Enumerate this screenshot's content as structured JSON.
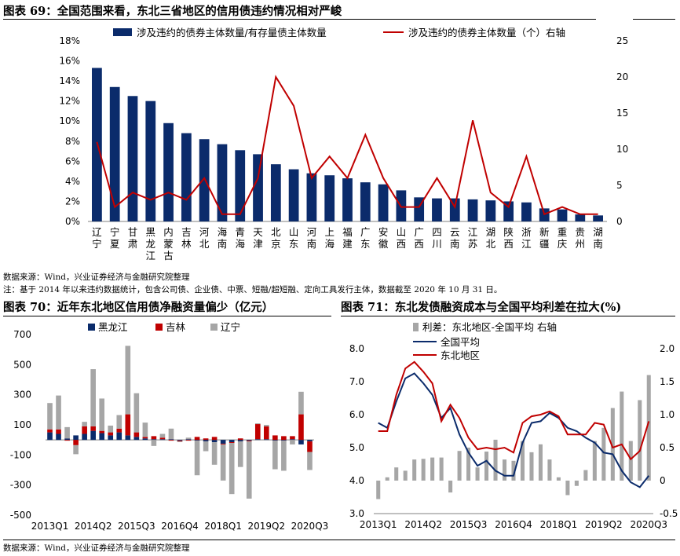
{
  "colors": {
    "navy": "#0B2B6B",
    "red": "#C00000",
    "gray": "#A6A6A6",
    "axis": "#808080"
  },
  "fig69": {
    "title": "图表 69：全国范围来看，东北三省地区的信用债违约情况相对严峻",
    "legend": {
      "bar": "涉及违约的债券主体数量/有存量债主体数量",
      "line": "涉及违约的债券主体数量（个）右轴"
    },
    "source": "数据来源：Wind，兴业证券经济与金融研究院整理",
    "note": "注：基于 2014 年以来违约数据统计，包含公司债、企业债、中票、短融/超短融、定向工具发行主体，数据截至 2020 年 10 月 31 日。"
  },
  "fig70": {
    "title": "图表 70：近年东北地区信用债净融资量偏少（亿元）",
    "legend": [
      "黑龙江",
      "吉林",
      "辽宁"
    ]
  },
  "fig71": {
    "title": "图表 71：东北发债融资成本与全国平均利差在拉大(%)",
    "legend": {
      "bar": "利差：东北地区-全国平均 右轴",
      "national": "全国平均",
      "northeast": "东北地区"
    }
  },
  "footer": {
    "source": "数据来源：Wind，兴业证券经济与金融研究院整理"
  },
  "chart_data": [
    {
      "id": "fig69",
      "type": "bar",
      "categories": [
        "辽宁",
        "宁夏",
        "甘肃",
        "黑龙江",
        "内蒙古",
        "吉林",
        "河北",
        "海南",
        "青海",
        "天津",
        "北京",
        "山东",
        "河南",
        "上海",
        "福建",
        "广东",
        "安徽",
        "山西",
        "广西",
        "四川",
        "云南",
        "江苏",
        "湖北",
        "陕西",
        "浙江",
        "新疆",
        "重庆",
        "贵州",
        "湖南"
      ],
      "ylim": [
        0,
        18
      ],
      "y2lim": [
        0,
        25
      ],
      "y_ticks": [
        "0%",
        "2%",
        "4%",
        "6%",
        "8%",
        "10%",
        "12%",
        "14%",
        "16%",
        "18%"
      ],
      "y2_ticks": [
        "0",
        "5",
        "10",
        "15",
        "20",
        "25"
      ],
      "series": [
        {
          "name": "涉及违约的债券主体数量/有存量债主体数量",
          "axis": "left",
          "kind": "bar",
          "values": [
            15.3,
            13.4,
            12.5,
            12.0,
            9.8,
            8.8,
            8.2,
            7.7,
            7.1,
            6.7,
            5.7,
            5.2,
            4.8,
            4.6,
            4.3,
            3.9,
            3.7,
            3.1,
            2.4,
            2.3,
            2.3,
            2.2,
            2.1,
            2.0,
            1.9,
            1.3,
            1.2,
            0.7,
            0.6
          ]
        },
        {
          "name": "涉及违约的债券主体数量（个）右轴",
          "axis": "right",
          "kind": "line",
          "values": [
            11,
            2,
            4,
            3,
            4,
            3,
            6,
            1,
            1,
            6,
            20,
            16,
            6,
            9,
            6,
            12,
            6,
            2,
            2,
            6,
            2,
            14,
            4,
            2,
            9,
            1,
            2,
            1,
            1
          ]
        }
      ]
    },
    {
      "id": "fig70",
      "type": "bar",
      "stacked": true,
      "x_tick_labels": [
        "2013Q1",
        "2014Q2",
        "2015Q3",
        "2016Q4",
        "2018Q1",
        "2019Q2",
        "2020Q3"
      ],
      "ylim": [
        -500,
        700
      ],
      "y_ticks": [
        -500,
        -300,
        -100,
        100,
        300,
        500,
        700
      ],
      "categories": [
        "2013Q1",
        "2013Q2",
        "2013Q3",
        "2013Q4",
        "2014Q1",
        "2014Q2",
        "2014Q3",
        "2014Q4",
        "2015Q1",
        "2015Q2",
        "2015Q3",
        "2015Q4",
        "2016Q1",
        "2016Q2",
        "2016Q3",
        "2016Q4",
        "2017Q1",
        "2017Q2",
        "2017Q3",
        "2017Q4",
        "2018Q1",
        "2018Q2",
        "2018Q3",
        "2018Q4",
        "2019Q1",
        "2019Q2",
        "2019Q3",
        "2019Q4",
        "2020Q1",
        "2020Q2",
        "2020Q3"
      ],
      "series": [
        {
          "name": "黑龙江",
          "values": [
            50,
            40,
            10,
            30,
            40,
            60,
            45,
            30,
            50,
            30,
            20,
            10,
            5,
            5,
            5,
            -5,
            5,
            -5,
            -10,
            -15,
            -25,
            -15,
            -10,
            -5,
            5,
            5,
            -5,
            -5,
            5,
            -30,
            -10
          ]
        },
        {
          "name": "吉林",
          "values": [
            20,
            30,
            -5,
            -35,
            50,
            30,
            15,
            20,
            25,
            140,
            30,
            10,
            20,
            10,
            -5,
            -5,
            -5,
            20,
            10,
            20,
            -5,
            -5,
            10,
            -5,
            100,
            85,
            30,
            25,
            20,
            170,
            -70
          ]
        },
        {
          "name": "辽宁",
          "values": [
            175,
            225,
            75,
            -60,
            30,
            380,
            215,
            45,
            90,
            455,
            260,
            95,
            -40,
            25,
            70,
            -5,
            10,
            -230,
            -65,
            -150,
            -240,
            -340,
            -170,
            -380,
            5,
            10,
            -190,
            -200,
            -30,
            150,
            -120
          ]
        }
      ]
    },
    {
      "id": "fig71",
      "type": "line",
      "x_tick_labels": [
        "2013Q1",
        "2014Q2",
        "2015Q3",
        "2016Q4",
        "2018Q1",
        "2019Q2",
        "2020Q3"
      ],
      "categories": [
        "2013Q1",
        "2013Q2",
        "2013Q3",
        "2013Q4",
        "2014Q1",
        "2014Q2",
        "2014Q3",
        "2014Q4",
        "2015Q1",
        "2015Q2",
        "2015Q3",
        "2015Q4",
        "2016Q1",
        "2016Q2",
        "2016Q3",
        "2016Q4",
        "2017Q1",
        "2017Q2",
        "2017Q3",
        "2017Q4",
        "2018Q1",
        "2018Q2",
        "2018Q3",
        "2018Q4",
        "2019Q1",
        "2019Q2",
        "2019Q3",
        "2019Q4",
        "2020Q1",
        "2020Q2",
        "2020Q3"
      ],
      "ylim": [
        3.0,
        8.0
      ],
      "y2lim": [
        -0.5,
        2.0
      ],
      "y_ticks": [
        "3.0",
        "4.0",
        "5.0",
        "6.0",
        "7.0",
        "8.0"
      ],
      "y2_ticks": [
        "-0.5",
        "0",
        "0.5",
        "1.0",
        "1.5",
        "2.0"
      ],
      "series": [
        {
          "name": "利差：东北地区-全国平均 右轴",
          "axis": "right",
          "kind": "bar",
          "values": [
            -0.28,
            0.05,
            0.2,
            0.15,
            0.32,
            0.33,
            0.35,
            0.35,
            -0.18,
            0.45,
            0.5,
            0.2,
            0.44,
            0.62,
            0.32,
            0.3,
            0.6,
            0.43,
            0.55,
            0.32,
            0.05,
            -0.22,
            -0.08,
            0.16,
            0.6,
            0.8,
            1.1,
            1.35,
            0.6,
            1.22,
            1.6
          ]
        },
        {
          "name": "全国平均",
          "axis": "left",
          "kind": "line",
          "values": [
            5.75,
            5.6,
            6.4,
            7.1,
            7.25,
            6.95,
            6.6,
            5.9,
            6.2,
            5.4,
            4.85,
            4.45,
            4.6,
            4.3,
            4.15,
            4.15,
            5.15,
            5.75,
            5.8,
            6.05,
            5.9,
            5.6,
            5.5,
            5.3,
            5.15,
            4.85,
            4.8,
            4.3,
            3.95,
            3.8,
            4.15
          ]
        },
        {
          "name": "东北地区",
          "axis": "left",
          "kind": "line",
          "values": [
            5.5,
            5.5,
            6.6,
            7.4,
            7.6,
            7.3,
            6.95,
            5.8,
            6.3,
            5.9,
            5.3,
            4.95,
            5.0,
            4.95,
            5.0,
            4.85,
            5.75,
            5.95,
            6.0,
            6.1,
            5.95,
            5.4,
            5.4,
            5.4,
            5.75,
            5.7,
            5.0,
            5.1,
            4.65,
            4.9,
            5.8
          ]
        }
      ]
    }
  ]
}
